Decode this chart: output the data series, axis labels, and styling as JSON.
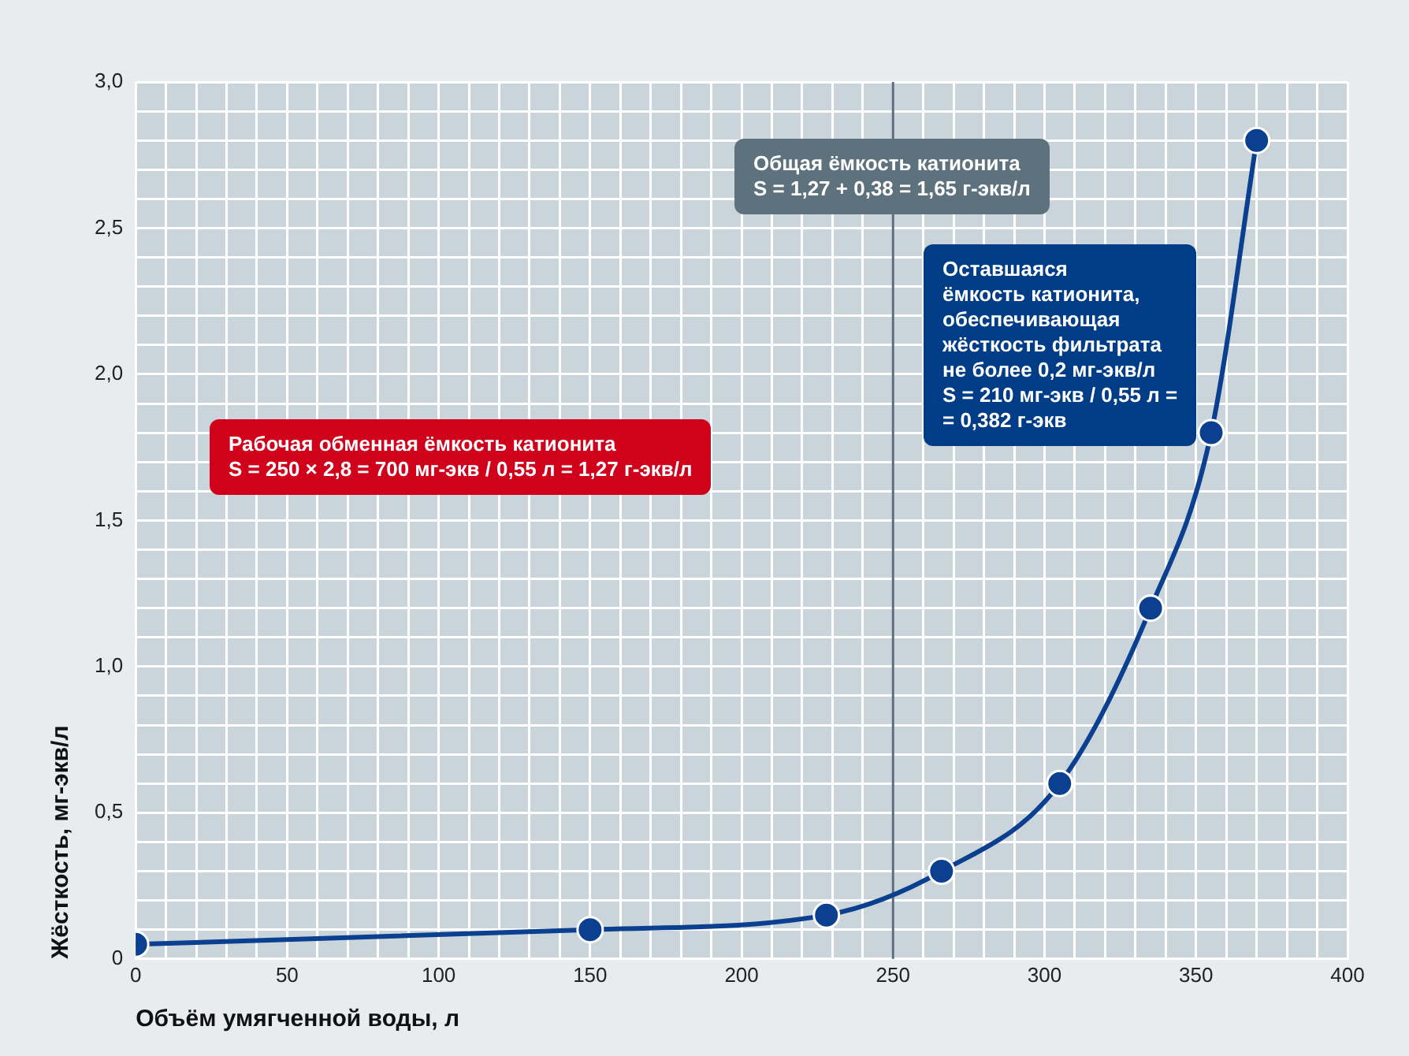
{
  "chart_data": {
    "type": "line",
    "xlabel": "Объём умягченной воды, л",
    "ylabel": "Жёсткость, мг-экв/л",
    "x": [
      0,
      150,
      228,
      266,
      305,
      335,
      355,
      370
    ],
    "series": [
      {
        "color": "#0b3f8f",
        "values": [
          0.05,
          0.1,
          0.15,
          0.3,
          0.6,
          1.2,
          1.8,
          2.8
        ]
      }
    ],
    "xlim": [
      0,
      400
    ],
    "xticks": [
      0,
      {
        "value": 10,
        "label": null
      },
      {
        "value": 20,
        "label": null
      },
      {
        "value": 30,
        "label": null
      },
      {
        "value": 40,
        "label": null
      },
      50,
      {
        "value": 60,
        "label": null
      },
      {
        "value": 70,
        "label": null
      },
      {
        "value": 80,
        "label": null
      },
      {
        "value": 90,
        "label": null
      },
      100,
      {
        "value": 110,
        "label": null
      },
      {
        "value": 120,
        "label": null
      },
      {
        "value": 130,
        "label": null
      },
      {
        "value": 140,
        "label": null
      },
      150,
      {
        "value": 160,
        "label": null
      },
      {
        "value": 170,
        "label": null
      },
      {
        "value": 180,
        "label": null
      },
      {
        "value": 190,
        "label": null
      },
      200,
      {
        "value": 210,
        "label": null
      },
      {
        "value": 220,
        "label": null
      },
      {
        "value": 230,
        "label": null
      },
      {
        "value": 240,
        "label": null
      },
      250,
      {
        "value": 260,
        "label": null
      },
      {
        "value": 270,
        "label": null
      },
      {
        "value": 280,
        "label": null
      },
      {
        "value": 290,
        "label": null
      },
      300,
      {
        "value": 310,
        "label": null
      },
      {
        "value": 320,
        "label": null
      },
      {
        "value": 330,
        "label": null
      },
      {
        "value": 340,
        "label": null
      },
      350,
      {
        "value": 360,
        "label": null
      },
      {
        "value": 370,
        "label": null
      },
      {
        "value": 380,
        "label": null
      },
      {
        "value": 390,
        "label": null
      },
      400
    ],
    "ylim": [
      0,
      3
    ],
    "yticks": [
      0,
      {
        "value": 0.1,
        "label": null
      },
      {
        "value": 0.2,
        "label": null
      },
      {
        "value": 0.3,
        "label": null
      },
      {
        "value": 0.4,
        "label": null
      },
      {
        "value": 0.5,
        "label": "0,5"
      },
      {
        "value": 0.6,
        "label": null
      },
      {
        "value": 0.7,
        "label": null
      },
      {
        "value": 0.8,
        "label": null
      },
      {
        "value": 0.9,
        "label": null
      },
      {
        "value": 1,
        "label": "1,0"
      },
      {
        "value": 1.1,
        "label": null
      },
      {
        "value": 1.2,
        "label": null
      },
      {
        "value": 1.3,
        "label": null
      },
      {
        "value": 1.4,
        "label": null
      },
      {
        "value": 1.5,
        "label": "1,5"
      },
      {
        "value": 1.6,
        "label": null
      },
      {
        "value": 1.7,
        "label": null
      },
      {
        "value": 1.8,
        "label": null
      },
      {
        "value": 1.9,
        "label": null
      },
      {
        "value": 2,
        "label": "2,0"
      },
      {
        "value": 2.1,
        "label": null
      },
      {
        "value": 2.2,
        "label": null
      },
      {
        "value": 2.3,
        "label": null
      },
      {
        "value": 2.4,
        "label": null
      },
      {
        "value": 2.5,
        "label": "2,5"
      },
      {
        "value": 2.6,
        "label": null
      },
      {
        "value": 2.7,
        "label": null
      },
      {
        "value": 2.8,
        "label": null
      },
      {
        "value": 2.9,
        "label": null
      },
      {
        "value": 3,
        "label": "3,0"
      }
    ],
    "grid": true,
    "marker": "circle",
    "line_style": "solid",
    "legend": false,
    "ref_lines": [
      {
        "axis": "x",
        "value": 250,
        "label": null,
        "color": "#5d6e7b"
      }
    ],
    "annotations": [
      "Рабочая обменная ёмкость катионита\nS = 250 × 2,8 = 700 мг-экв / 0,55 л = 1,27 г-экв/л",
      "Общая ёмкость катионита\nS = 1,27 + 0,38 = 1,65 г-экв/л",
      "Оставшаяся\nёмкость катионита,\nобеспечивающая\nжёсткость фильтрата\nне более 0,2 мг-экв/л\nS = 210 мг-экв / 0,55 л =\n= 0,382 г-экв"
    ]
  }
}
